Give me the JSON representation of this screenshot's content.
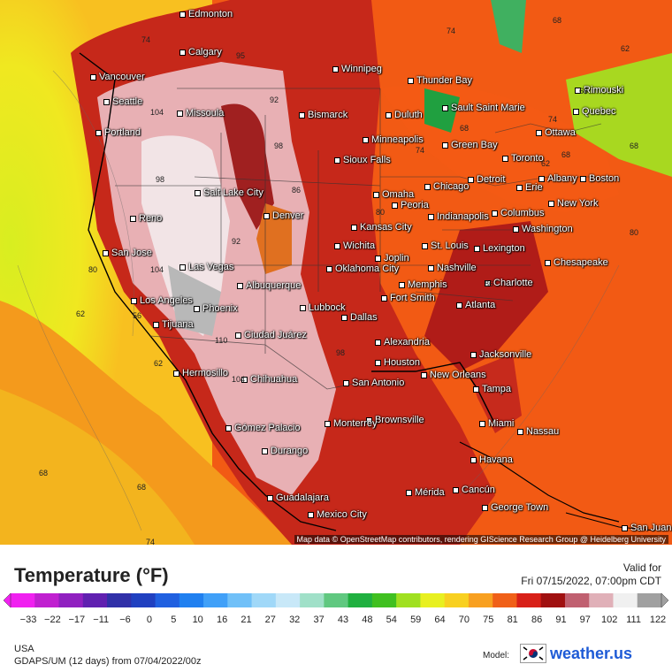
{
  "map": {
    "attribution": "Map data © OpenStreetMap contributors, rendering GIScience Research Group @ Heidelberg University",
    "cities": [
      {
        "name": "Edmonton"
      },
      {
        "name": "Calgary"
      },
      {
        "name": "Vancouver"
      },
      {
        "name": "Seattle"
      },
      {
        "name": "Missoula"
      },
      {
        "name": "Portland"
      },
      {
        "name": "Winnipeg"
      },
      {
        "name": "Bismarck"
      },
      {
        "name": "Thunder Bay"
      },
      {
        "name": "Duluth"
      },
      {
        "name": "Sault Saint Marie"
      },
      {
        "name": "Rimouski"
      },
      {
        "name": "Quebec"
      },
      {
        "name": "Ottawa"
      },
      {
        "name": "Minneapolis"
      },
      {
        "name": "Green Bay"
      },
      {
        "name": "Sioux Falls"
      },
      {
        "name": "Toronto"
      },
      {
        "name": "Albany"
      },
      {
        "name": "Boston"
      },
      {
        "name": "Detroit"
      },
      {
        "name": "Erie"
      },
      {
        "name": "Chicago"
      },
      {
        "name": "Salt Lake City"
      },
      {
        "name": "Omaha"
      },
      {
        "name": "Peoria"
      },
      {
        "name": "Indianapolis"
      },
      {
        "name": "Columbus"
      },
      {
        "name": "New York"
      },
      {
        "name": "Reno"
      },
      {
        "name": "Denver"
      },
      {
        "name": "Kansas City"
      },
      {
        "name": "Washington"
      },
      {
        "name": "San Jose"
      },
      {
        "name": "Wichita"
      },
      {
        "name": "St. Louis"
      },
      {
        "name": "Lexington"
      },
      {
        "name": "Las Vegas"
      },
      {
        "name": "Joplin"
      },
      {
        "name": "Nashville"
      },
      {
        "name": "Chesapeake"
      },
      {
        "name": "Oklahoma City"
      },
      {
        "name": "Albuquerque"
      },
      {
        "name": "Memphis"
      },
      {
        "name": "Charlotte"
      },
      {
        "name": "Los Angeles"
      },
      {
        "name": "Fort Smith"
      },
      {
        "name": "Phoenix"
      },
      {
        "name": "Lubbock"
      },
      {
        "name": "Atlanta"
      },
      {
        "name": "Tijuana"
      },
      {
        "name": "Dallas"
      },
      {
        "name": "Ciudad Juárez"
      },
      {
        "name": "Alexandria"
      },
      {
        "name": "Jacksonville"
      },
      {
        "name": "Houston"
      },
      {
        "name": "Hermosillo"
      },
      {
        "name": "New Orleans"
      },
      {
        "name": "Chihuahua"
      },
      {
        "name": "San Antonio"
      },
      {
        "name": "Tampa"
      },
      {
        "name": "Brownsville"
      },
      {
        "name": "Gómez Palacio"
      },
      {
        "name": "Monterrey"
      },
      {
        "name": "Miami"
      },
      {
        "name": "Nassau"
      },
      {
        "name": "Durango"
      },
      {
        "name": "Havana"
      },
      {
        "name": "Mérida"
      },
      {
        "name": "Cancún"
      },
      {
        "name": "Guadalajara"
      },
      {
        "name": "George Town"
      },
      {
        "name": "Mexico City"
      },
      {
        "name": "San Juan"
      }
    ],
    "temperature_labels": [
      "74",
      "95",
      "104",
      "98",
      "92",
      "86",
      "80",
      "74",
      "68",
      "62",
      "68",
      "68",
      "98",
      "110",
      "104",
      "62",
      "56",
      "62",
      "68",
      "68",
      "74",
      "80",
      "62",
      "68",
      "104",
      "98",
      "74",
      "68",
      "74",
      "92",
      "80",
      "86"
    ]
  },
  "legend": {
    "title": "Temperature (°F)",
    "valid_label": "Valid for",
    "valid_time": "Fri 07/15/2022, 07:00pm CDT",
    "ticks": [
      "−33",
      "−22",
      "−17",
      "−11",
      "−6",
      "0",
      "5",
      "10",
      "16",
      "21",
      "27",
      "32",
      "37",
      "43",
      "48",
      "54",
      "59",
      "64",
      "70",
      "75",
      "81",
      "86",
      "91",
      "97",
      "102",
      "111",
      "122"
    ],
    "colors": [
      "#f020f0",
      "#c020d0",
      "#9020c0",
      "#6020b0",
      "#3030a8",
      "#2040c0",
      "#2060e0",
      "#2080f0",
      "#40a0f8",
      "#70c0f8",
      "#a0d8f8",
      "#c8e8f8",
      "#a0e0c8",
      "#60c880",
      "#20b040",
      "#40c020",
      "#a0e020",
      "#e8f020",
      "#f8d020",
      "#f8a020",
      "#f06018",
      "#d82018",
      "#a01010",
      "#c06070",
      "#e0b0b8",
      "#f0f0f0",
      "#a0a0a0"
    ]
  },
  "footer": {
    "region": "USA",
    "model_run": "GDAPS/UM (12 days) from 07/04/2022/00z",
    "model_label": "Model:",
    "brand": "weather.us"
  }
}
